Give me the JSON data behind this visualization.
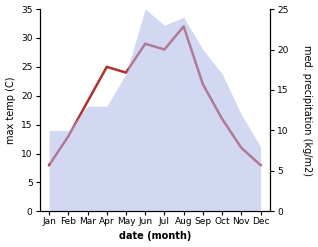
{
  "months": [
    "Jan",
    "Feb",
    "Mar",
    "Apr",
    "May",
    "Jun",
    "Jul",
    "Aug",
    "Sep",
    "Oct",
    "Nov",
    "Dec"
  ],
  "temp": [
    8,
    13,
    19,
    25,
    24,
    29,
    28,
    32,
    22,
    16,
    11,
    8
  ],
  "precip": [
    10,
    10,
    13,
    13,
    17,
    25,
    23,
    24,
    20,
    17,
    12,
    8
  ],
  "temp_color": "#b03030",
  "precip_color": "#b0b8e8",
  "precip_alpha": 0.55,
  "xlabel": "date (month)",
  "ylabel_left": "max temp (C)",
  "ylabel_right": "med. precipitation (kg/m2)",
  "ylim_left": [
    0,
    35
  ],
  "ylim_right": [
    0,
    25
  ],
  "yticks_left": [
    0,
    5,
    10,
    15,
    20,
    25,
    30,
    35
  ],
  "yticks_right": [
    0,
    5,
    10,
    15,
    20,
    25
  ],
  "bg_color": "#ffffff",
  "linewidth": 1.8,
  "label_fontsize": 7,
  "tick_fontsize": 6.5,
  "xlabel_fontsize": 7
}
